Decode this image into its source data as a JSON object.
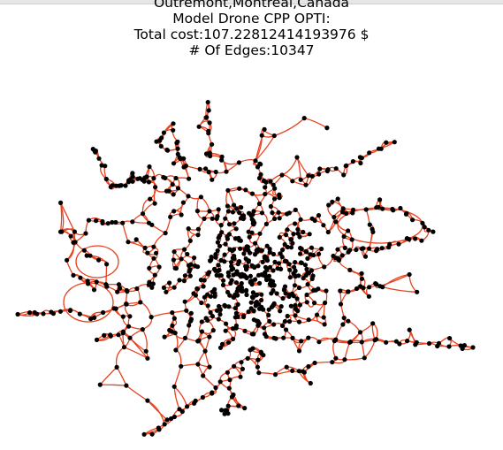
{
  "figure": {
    "title_lines": [
      "Outremont,Montreal,Canada",
      "Model Drone CPP OPTI:",
      "Total cost:107.22812414193976 $",
      "# Of Edges:10347"
    ]
  },
  "colors": {
    "edge": "#e8421f",
    "node": "#000000",
    "background": "#ffffff"
  }
}
